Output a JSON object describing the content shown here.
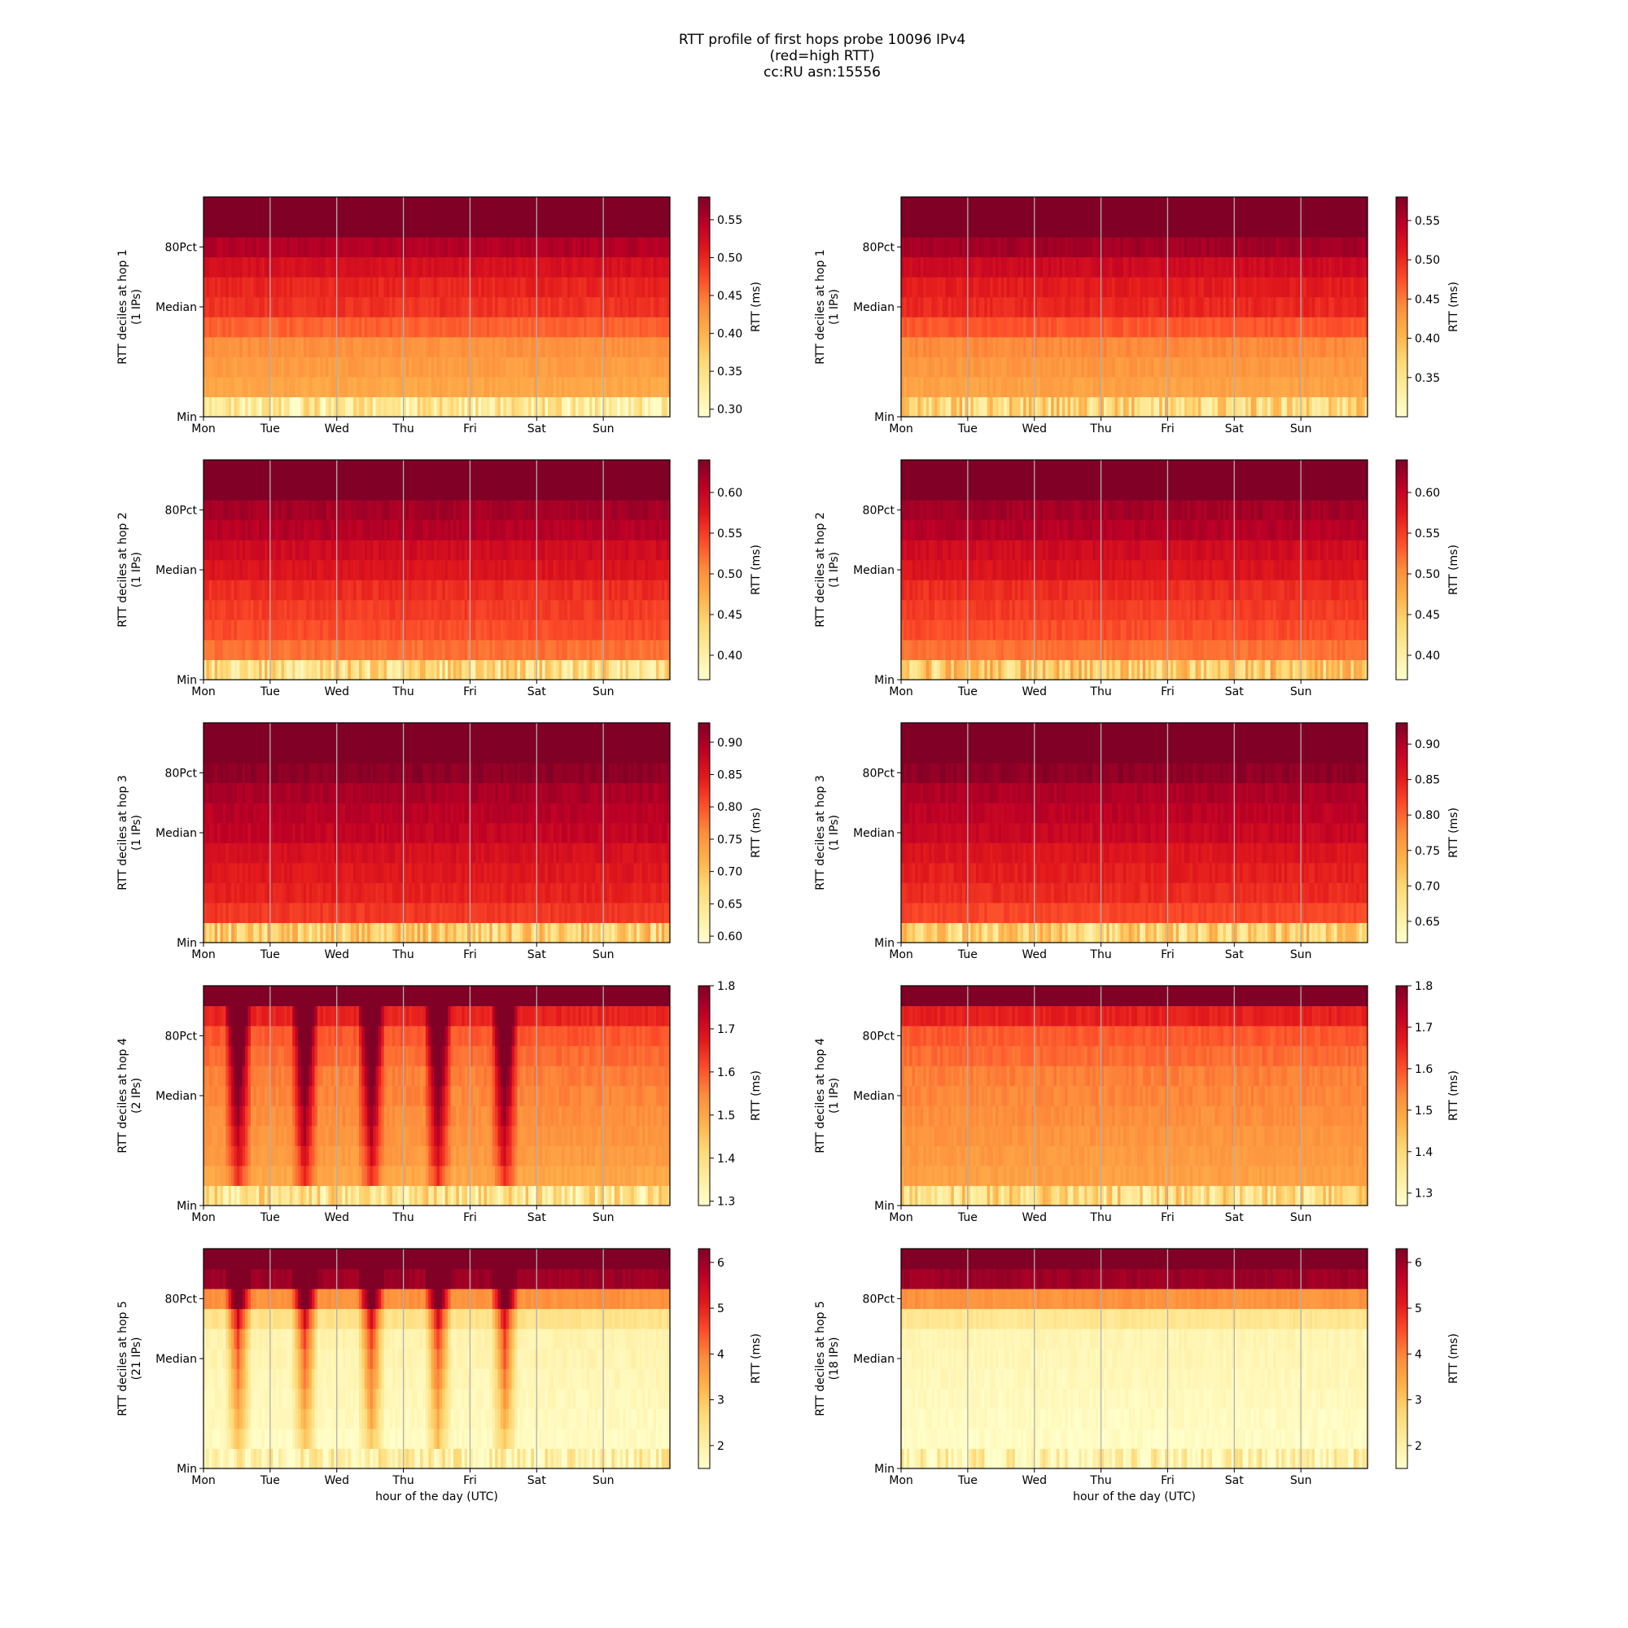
{
  "figure": {
    "title_lines": [
      "RTT profile of first hops probe 10096 IPv4",
      "(red=high RTT)",
      "cc:RU asn:15556"
    ],
    "xlabel": "hour of the day (UTC)",
    "colormap": [
      "#ffffcc",
      "#ffeda0",
      "#fed976",
      "#feb24c",
      "#fd8d3c",
      "#fc4e2a",
      "#e31a1c",
      "#bd0026",
      "#800026"
    ]
  },
  "chart_data": [
    {
      "type": "heatmap",
      "hop": 1,
      "ylabel": "RTT deciles at hop 1",
      "ips": "(1 IPs)",
      "x_ticks": [
        "Mon",
        "Tue",
        "Wed",
        "Thu",
        "Fri",
        "Sat",
        "Sun"
      ],
      "y_ticks": [
        "80Pct",
        "Median",
        "Min"
      ],
      "colorbar_label": "RTT (ms)",
      "colorbar_range": [
        0.29,
        0.58
      ],
      "colorbar_ticks": [
        "0.30",
        "0.35",
        "0.40",
        "0.45",
        "0.50",
        "0.55"
      ],
      "decile_profile_ms": [
        0.31,
        0.41,
        0.42,
        0.43,
        0.46,
        0.49,
        0.5,
        0.52,
        0.55,
        0.62,
        0.7
      ],
      "weekly_pattern": "flat"
    },
    {
      "type": "heatmap",
      "hop": 1,
      "ylabel": "RTT deciles at hop 1",
      "ips": "(1 IPs)",
      "x_ticks": [
        "Mon",
        "Tue",
        "Wed",
        "Thu",
        "Fri",
        "Sat",
        "Sun"
      ],
      "y_ticks": [
        "80Pct",
        "Median",
        "Min"
      ],
      "colorbar_label": "RTT (ms)",
      "colorbar_range": [
        0.3,
        0.58
      ],
      "colorbar_ticks": [
        "0.35",
        "0.40",
        "0.45",
        "0.50",
        "0.55"
      ],
      "decile_profile_ms": [
        0.35,
        0.42,
        0.43,
        0.44,
        0.47,
        0.5,
        0.51,
        0.53,
        0.56,
        0.63,
        0.7
      ],
      "weekly_pattern": "flat"
    },
    {
      "type": "heatmap",
      "hop": 2,
      "ylabel": "RTT deciles at hop 2",
      "ips": "(1 IPs)",
      "x_ticks": [
        "Mon",
        "Tue",
        "Wed",
        "Thu",
        "Fri",
        "Sat",
        "Sun"
      ],
      "y_ticks": [
        "80Pct",
        "Median",
        "Min"
      ],
      "colorbar_label": "RTT (ms)",
      "colorbar_range": [
        0.37,
        0.64
      ],
      "colorbar_ticks": [
        "0.40",
        "0.45",
        "0.50",
        "0.55",
        "0.60"
      ],
      "decile_profile_ms": [
        0.41,
        0.52,
        0.54,
        0.55,
        0.56,
        0.58,
        0.59,
        0.61,
        0.62,
        0.66,
        0.72
      ],
      "weekly_pattern": "flat"
    },
    {
      "type": "heatmap",
      "hop": 2,
      "ylabel": "RTT deciles at hop 2",
      "ips": "(1 IPs)",
      "x_ticks": [
        "Mon",
        "Tue",
        "Wed",
        "Thu",
        "Fri",
        "Sat",
        "Sun"
      ],
      "y_ticks": [
        "80Pct",
        "Median",
        "Min"
      ],
      "colorbar_label": "RTT (ms)",
      "colorbar_range": [
        0.37,
        0.64
      ],
      "colorbar_ticks": [
        "0.40",
        "0.45",
        "0.50",
        "0.55",
        "0.60"
      ],
      "decile_profile_ms": [
        0.43,
        0.52,
        0.54,
        0.55,
        0.56,
        0.58,
        0.59,
        0.61,
        0.62,
        0.66,
        0.72
      ],
      "weekly_pattern": "flat"
    },
    {
      "type": "heatmap",
      "hop": 3,
      "ylabel": "RTT deciles at hop 3",
      "ips": "(1 IPs)",
      "x_ticks": [
        "Mon",
        "Tue",
        "Wed",
        "Thu",
        "Fri",
        "Sat",
        "Sun"
      ],
      "y_ticks": [
        "80Pct",
        "Median",
        "Min"
      ],
      "colorbar_label": "RTT (ms)",
      "colorbar_range": [
        0.59,
        0.93
      ],
      "colorbar_ticks": [
        "0.60",
        "0.65",
        "0.70",
        "0.75",
        "0.80",
        "0.85",
        "0.90"
      ],
      "decile_profile_ms": [
        0.66,
        0.82,
        0.84,
        0.85,
        0.86,
        0.88,
        0.89,
        0.9,
        0.92,
        0.98,
        1.05
      ],
      "weekly_pattern": "flat"
    },
    {
      "type": "heatmap",
      "hop": 3,
      "ylabel": "RTT deciles at hop 3",
      "ips": "(1 IPs)",
      "x_ticks": [
        "Mon",
        "Tue",
        "Wed",
        "Thu",
        "Fri",
        "Sat",
        "Sun"
      ],
      "y_ticks": [
        "80Pct",
        "Median",
        "Min"
      ],
      "colorbar_label": "RTT (ms)",
      "colorbar_range": [
        0.62,
        0.93
      ],
      "colorbar_ticks": [
        "0.65",
        "0.70",
        "0.75",
        "0.80",
        "0.85",
        "0.90"
      ],
      "decile_profile_ms": [
        0.68,
        0.82,
        0.84,
        0.85,
        0.86,
        0.88,
        0.89,
        0.9,
        0.92,
        0.98,
        1.05
      ],
      "weekly_pattern": "flat"
    },
    {
      "type": "heatmap",
      "hop": 4,
      "ylabel": "RTT deciles at hop 4",
      "ips": "(2 IPs)",
      "x_ticks": [
        "Mon",
        "Tue",
        "Wed",
        "Thu",
        "Fri",
        "Sat",
        "Sun"
      ],
      "y_ticks": [
        "80Pct",
        "Median",
        "Min"
      ],
      "colorbar_label": "RTT (ms)",
      "colorbar_range": [
        1.29,
        1.8
      ],
      "colorbar_ticks": [
        "1.3",
        "1.4",
        "1.5",
        "1.6",
        "1.7",
        "1.8"
      ],
      "decile_profile_ms": [
        1.35,
        1.5,
        1.52,
        1.53,
        1.54,
        1.55,
        1.56,
        1.58,
        1.6,
        1.66,
        1.85
      ],
      "weekly_pattern": "daily-peaks"
    },
    {
      "type": "heatmap",
      "hop": 4,
      "ylabel": "RTT deciles at hop 4",
      "ips": "(1 IPs)",
      "x_ticks": [
        "Mon",
        "Tue",
        "Wed",
        "Thu",
        "Fri",
        "Sat",
        "Sun"
      ],
      "y_ticks": [
        "80Pct",
        "Median",
        "Min"
      ],
      "colorbar_label": "RTT (ms)",
      "colorbar_range": [
        1.27,
        1.8
      ],
      "colorbar_ticks": [
        "1.3",
        "1.4",
        "1.5",
        "1.6",
        "1.7",
        "1.8"
      ],
      "decile_profile_ms": [
        1.35,
        1.5,
        1.51,
        1.52,
        1.53,
        1.54,
        1.55,
        1.57,
        1.59,
        1.66,
        1.85
      ],
      "weekly_pattern": "flat"
    },
    {
      "type": "heatmap",
      "hop": 5,
      "ylabel": "RTT deciles at hop 5",
      "ips": "(21 IPs)",
      "x_ticks": [
        "Mon",
        "Tue",
        "Wed",
        "Thu",
        "Fri",
        "Sat",
        "Sun"
      ],
      "y_ticks": [
        "80Pct",
        "Median",
        "Min"
      ],
      "colorbar_label": "RTT (ms)",
      "colorbar_range": [
        1.5,
        6.3
      ],
      "colorbar_ticks": [
        "2",
        "3",
        "4",
        "5",
        "6"
      ],
      "decile_profile_ms": [
        1.6,
        1.65,
        1.7,
        1.75,
        1.8,
        1.85,
        1.9,
        2.4,
        3.8,
        6.0,
        7.5
      ],
      "weekly_pattern": "daily-peaks"
    },
    {
      "type": "heatmap",
      "hop": 5,
      "ylabel": "RTT deciles at hop 5",
      "ips": "(18 IPs)",
      "x_ticks": [
        "Mon",
        "Tue",
        "Wed",
        "Thu",
        "Fri",
        "Sat",
        "Sun"
      ],
      "y_ticks": [
        "80Pct",
        "Median",
        "Min"
      ],
      "colorbar_label": "RTT (ms)",
      "colorbar_range": [
        1.5,
        6.3
      ],
      "colorbar_ticks": [
        "2",
        "3",
        "4",
        "5",
        "6"
      ],
      "decile_profile_ms": [
        1.55,
        1.6,
        1.65,
        1.7,
        1.75,
        1.8,
        1.85,
        2.3,
        3.8,
        6.0,
        7.5
      ],
      "weekly_pattern": "flat"
    }
  ]
}
